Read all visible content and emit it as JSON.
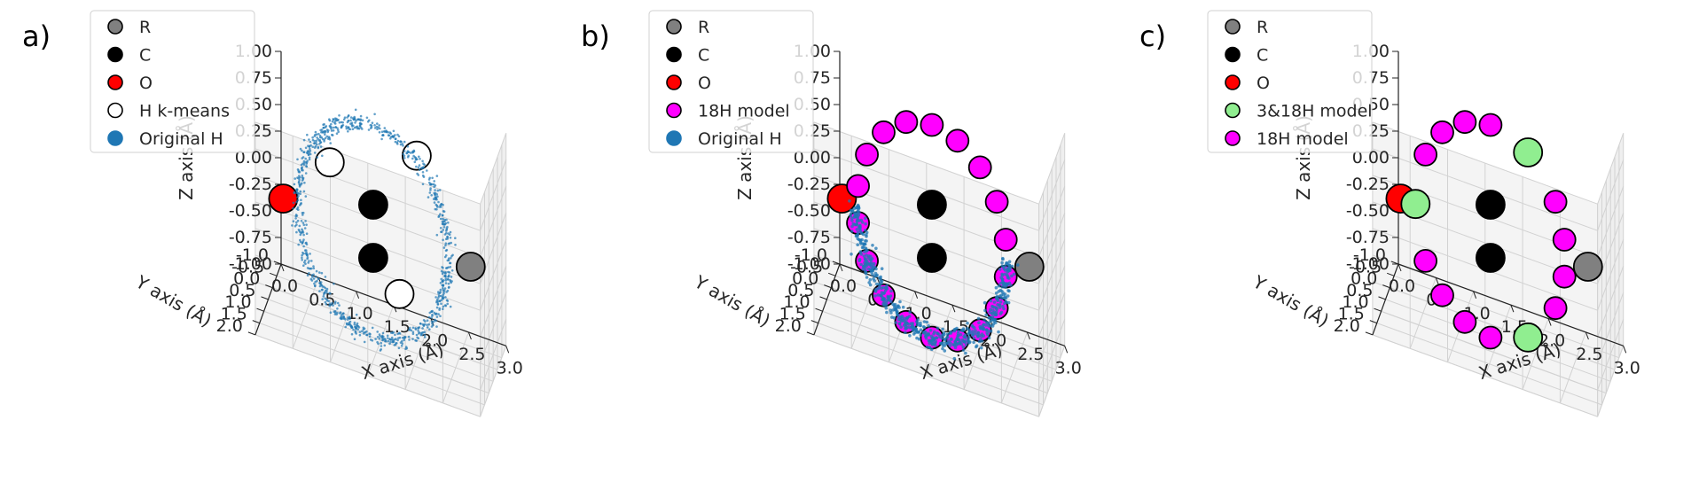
{
  "figure": {
    "panels": [
      {
        "panel_label": "a)",
        "legend": [
          {
            "label": "R",
            "face": "#808080",
            "edge": "#000000"
          },
          {
            "label": "C",
            "face": "#000000",
            "edge": "#000000"
          },
          {
            "label": "O",
            "face": "#ff0000",
            "edge": "#000000"
          },
          {
            "label": "H k-means",
            "face": "#ffffff",
            "edge": "#000000"
          },
          {
            "label": "Original H",
            "face": "#1f77b4",
            "edge": "#1f77b4"
          }
        ]
      },
      {
        "panel_label": "b)",
        "legend": [
          {
            "label": "R",
            "face": "#808080",
            "edge": "#000000"
          },
          {
            "label": "C",
            "face": "#000000",
            "edge": "#000000"
          },
          {
            "label": "O",
            "face": "#ff0000",
            "edge": "#000000"
          },
          {
            "label": "18H model",
            "face": "#ff00ff",
            "edge": "#000000"
          },
          {
            "label": "Original H",
            "face": "#1f77b4",
            "edge": "#1f77b4"
          }
        ]
      },
      {
        "panel_label": "c)",
        "legend": [
          {
            "label": "R",
            "face": "#808080",
            "edge": "#000000"
          },
          {
            "label": "C",
            "face": "#000000",
            "edge": "#000000"
          },
          {
            "label": "O",
            "face": "#ff0000",
            "edge": "#000000"
          },
          {
            "label": "3&18H model",
            "face": "#90ee90",
            "edge": "#000000"
          },
          {
            "label": "18H model",
            "face": "#ff00ff",
            "edge": "#000000"
          }
        ]
      }
    ]
  },
  "chart_data": [
    {
      "type": "scatter",
      "projection": "3d",
      "xlabel": "X axis (Å)",
      "ylabel": "Y axis (Å)",
      "zlabel": "Z axis (Å)",
      "xlim": [
        0.0,
        3.0
      ],
      "ylim": [
        -1.0,
        2.0
      ],
      "zlim": [
        -1.0,
        1.0
      ],
      "xticks": [
        "0.0",
        "0.5",
        "1.0",
        "1.5",
        "2.0",
        "2.5",
        "3.0"
      ],
      "yticks": [
        "-1.0",
        "-0.5",
        "0.0",
        "0.5",
        "1.0",
        "1.5",
        "2.0"
      ],
      "zticks": [
        "-1.00",
        "-0.75",
        "-0.50",
        "-0.25",
        "0.00",
        "0.25",
        "0.50",
        "0.75",
        "1.00"
      ],
      "grid": true,
      "legend_position": "upper-left",
      "series": [
        {
          "name": "R",
          "color": "#808080",
          "points": [
            [
              2.7,
              0.5,
              0.0
            ]
          ]
        },
        {
          "name": "C",
          "color": "#000000",
          "points": [
            [
              1.4,
              0.5,
              0.25
            ],
            [
              1.4,
              0.5,
              -0.25
            ]
          ]
        },
        {
          "name": "O",
          "color": "#ff0000",
          "points": [
            [
              0.2,
              0.5,
              0.0
            ]
          ]
        },
        {
          "name": "H k-means",
          "color": "#ffffff",
          "points": [
            [
              1.98,
              0.5,
              0.86
            ],
            [
              0.82,
              0.5,
              0.5
            ],
            [
              1.75,
              0.5,
              -0.5
            ]
          ]
        },
        {
          "name": "Original H",
          "color": "#1f77b4",
          "ring": {
            "center": [
              1.4,
              0.5,
              0.0
            ],
            "radius": 1.0
          }
        }
      ]
    },
    {
      "type": "scatter",
      "projection": "3d",
      "xlabel": "X axis (Å)",
      "ylabel": "Y axis (Å)",
      "zlabel": "Z axis (Å)",
      "xlim": [
        0.0,
        3.0
      ],
      "ylim": [
        -1.0,
        2.0
      ],
      "zlim": [
        -1.0,
        1.0
      ],
      "xticks": [
        "0.0",
        "0.5",
        "1.0",
        "1.5",
        "2.0",
        "2.5",
        "3.0"
      ],
      "yticks": [
        "-1.0",
        "-0.5",
        "0.0",
        "0.5",
        "1.0",
        "1.5",
        "2.0"
      ],
      "zticks": [
        "-1.00",
        "-0.75",
        "-0.50",
        "-0.25",
        "0.00",
        "0.25",
        "0.50",
        "0.75",
        "1.00"
      ],
      "grid": true,
      "legend_position": "upper-left",
      "series": [
        {
          "name": "R",
          "color": "#808080",
          "points": [
            [
              2.7,
              0.5,
              0.0
            ]
          ]
        },
        {
          "name": "C",
          "color": "#000000",
          "points": [
            [
              1.4,
              0.5,
              0.25
            ],
            [
              1.4,
              0.5,
              -0.25
            ]
          ]
        },
        {
          "name": "O",
          "color": "#ff0000",
          "points": [
            [
              0.2,
              0.5,
              0.0
            ]
          ]
        },
        {
          "name": "18H model",
          "color": "#ff00ff",
          "ring": {
            "center": [
              1.4,
              0.5,
              0.0
            ],
            "radius": 1.0,
            "count": 18,
            "start_deg": 10
          }
        },
        {
          "name": "Original H",
          "color": "#1f77b4",
          "arc": {
            "center": [
              1.4,
              0.5,
              0.0
            ],
            "radius": 1.0,
            "from_deg": 180,
            "to_deg": 360
          }
        }
      ]
    },
    {
      "type": "scatter",
      "projection": "3d",
      "xlabel": "X axis (Å)",
      "ylabel": "Y axis (Å)",
      "zlabel": "Z axis (Å)",
      "xlim": [
        0.0,
        3.0
      ],
      "ylim": [
        -1.0,
        2.0
      ],
      "zlim": [
        -1.0,
        1.0
      ],
      "xticks": [
        "0.0",
        "0.5",
        "1.0",
        "1.5",
        "2.0",
        "2.5",
        "3.0"
      ],
      "yticks": [
        "-1.0",
        "-0.5",
        "0.0",
        "0.5",
        "1.0",
        "1.5",
        "2.0"
      ],
      "zticks": [
        "-1.00",
        "-0.75",
        "-0.50",
        "-0.25",
        "0.00",
        "0.25",
        "0.50",
        "0.75",
        "1.00"
      ],
      "grid": true,
      "legend_position": "upper-left",
      "series": [
        {
          "name": "R",
          "color": "#808080",
          "points": [
            [
              2.7,
              0.5,
              0.0
            ]
          ]
        },
        {
          "name": "C",
          "color": "#000000",
          "points": [
            [
              1.4,
              0.5,
              0.25
            ],
            [
              1.4,
              0.5,
              -0.25
            ]
          ]
        },
        {
          "name": "O",
          "color": "#ff0000",
          "points": [
            [
              0.2,
              0.5,
              0.0
            ]
          ]
        },
        {
          "name": "3&18H model",
          "color": "#90ee90",
          "points": [
            [
              1.9,
              0.5,
              0.87
            ],
            [
              0.4,
              0.5,
              0.0
            ],
            [
              1.9,
              0.5,
              -0.87
            ]
          ]
        },
        {
          "name": "18H model",
          "color": "#ff00ff",
          "ring": {
            "center": [
              1.4,
              0.5,
              0.0
            ],
            "radius": 1.0,
            "count": 18,
            "start_deg": 10,
            "exclude_deg": [
              60,
              180,
              300
            ]
          }
        }
      ]
    }
  ]
}
